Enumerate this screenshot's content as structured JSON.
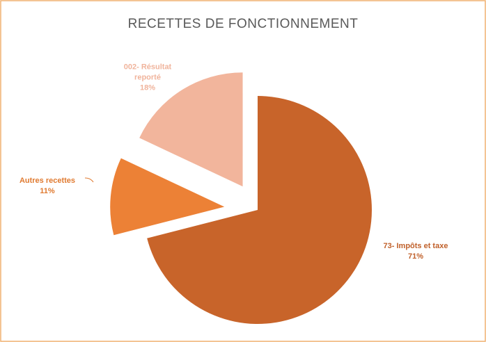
{
  "chart_data": {
    "type": "pie",
    "title": "RECETTES DE FONCTIONNEMENT",
    "categories": [
      "73- Impôts et taxe",
      "Autres recettes",
      "002- Résultat reporté"
    ],
    "values": [
      71,
      11,
      18
    ],
    "value_labels": [
      "71%",
      "11%",
      "18%"
    ],
    "colors": [
      "#c8642a",
      "#ec8136",
      "#f2b59c"
    ]
  }
}
